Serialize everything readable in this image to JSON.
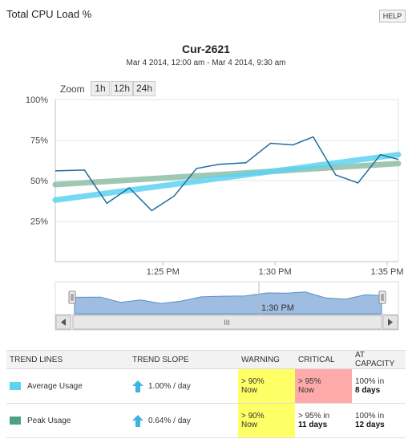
{
  "header": {
    "title": "Total CPU Load %",
    "help_label": "HELP"
  },
  "chart_data": {
    "type": "line",
    "title": "Cur-2621",
    "subtitle": "Mar 4 2014, 12:00 am - Mar 4 2014, 9:30 am",
    "zoom": {
      "label": "Zoom",
      "options": [
        "1h",
        "12h",
        "24h"
      ]
    },
    "y_ticks": [
      "100%",
      "75%",
      "50%",
      "25%"
    ],
    "y_tick_values": [
      100,
      75,
      50,
      25
    ],
    "ylim": [
      0,
      100
    ],
    "x_ticks": [
      "1:25 PM",
      "1:30 PM",
      "1:35 PM"
    ],
    "x_tick_minutes": [
      25,
      30,
      35
    ],
    "xlim_minutes": [
      20.2,
      35.5
    ],
    "series": [
      {
        "name": "",
        "color": "#1f6e9e",
        "x": [
          20.2,
          21.5,
          22.5,
          23.5,
          24.5,
          25.5,
          26.5,
          27.5,
          28.7,
          29.8,
          30.8,
          31.7,
          32.7,
          33.7,
          34.7,
          35.5
        ],
        "values": [
          56,
          56.5,
          36,
          45.5,
          31.5,
          40.5,
          57.5,
          60,
          61,
          73,
          72,
          77,
          53.5,
          48.5,
          66,
          63
        ]
      }
    ],
    "trend_lines": [
      {
        "name": "Average Usage",
        "color": "#5dd3f2",
        "x": [
          20.2,
          35.5
        ],
        "values": [
          38,
          66
        ]
      },
      {
        "name": "Peak Usage",
        "color": "#8fbfa8",
        "x": [
          20.2,
          35.5
        ],
        "values": [
          47.5,
          60.5
        ]
      }
    ],
    "navigator": {
      "tick_label": "1:30 PM",
      "scroll_grip": "III"
    }
  },
  "trend_table": {
    "headers": [
      "TREND LINES",
      "TREND SLOPE",
      "WARNING",
      "CRITICAL",
      "AT CAPACITY"
    ],
    "rows": [
      {
        "name": "Average Usage",
        "swatch_color": "#5dd3f2",
        "slope": "1.00% / day",
        "warning_line1": "> 90%",
        "warning_line2": "Now",
        "critical_line1": "> 95%",
        "critical_line2": "Now",
        "capacity_line1": "100% in",
        "capacity_line2": "8 days"
      },
      {
        "name": "Peak Usage",
        "swatch_color": "#4f9e86",
        "slope": "0.64% / day",
        "warning_line1": "> 90%",
        "warning_line2": "Now",
        "critical_line1": "> 95% in",
        "critical_line2": "11 days",
        "capacity_line1": "100% in",
        "capacity_line2": "12 days"
      }
    ]
  },
  "colors": {
    "warning_bg": "#ffff66",
    "critical_bg": "#ffaaaa",
    "navigator_fill": "#9ebde0",
    "navigator_stroke": "#5b8fc9"
  }
}
